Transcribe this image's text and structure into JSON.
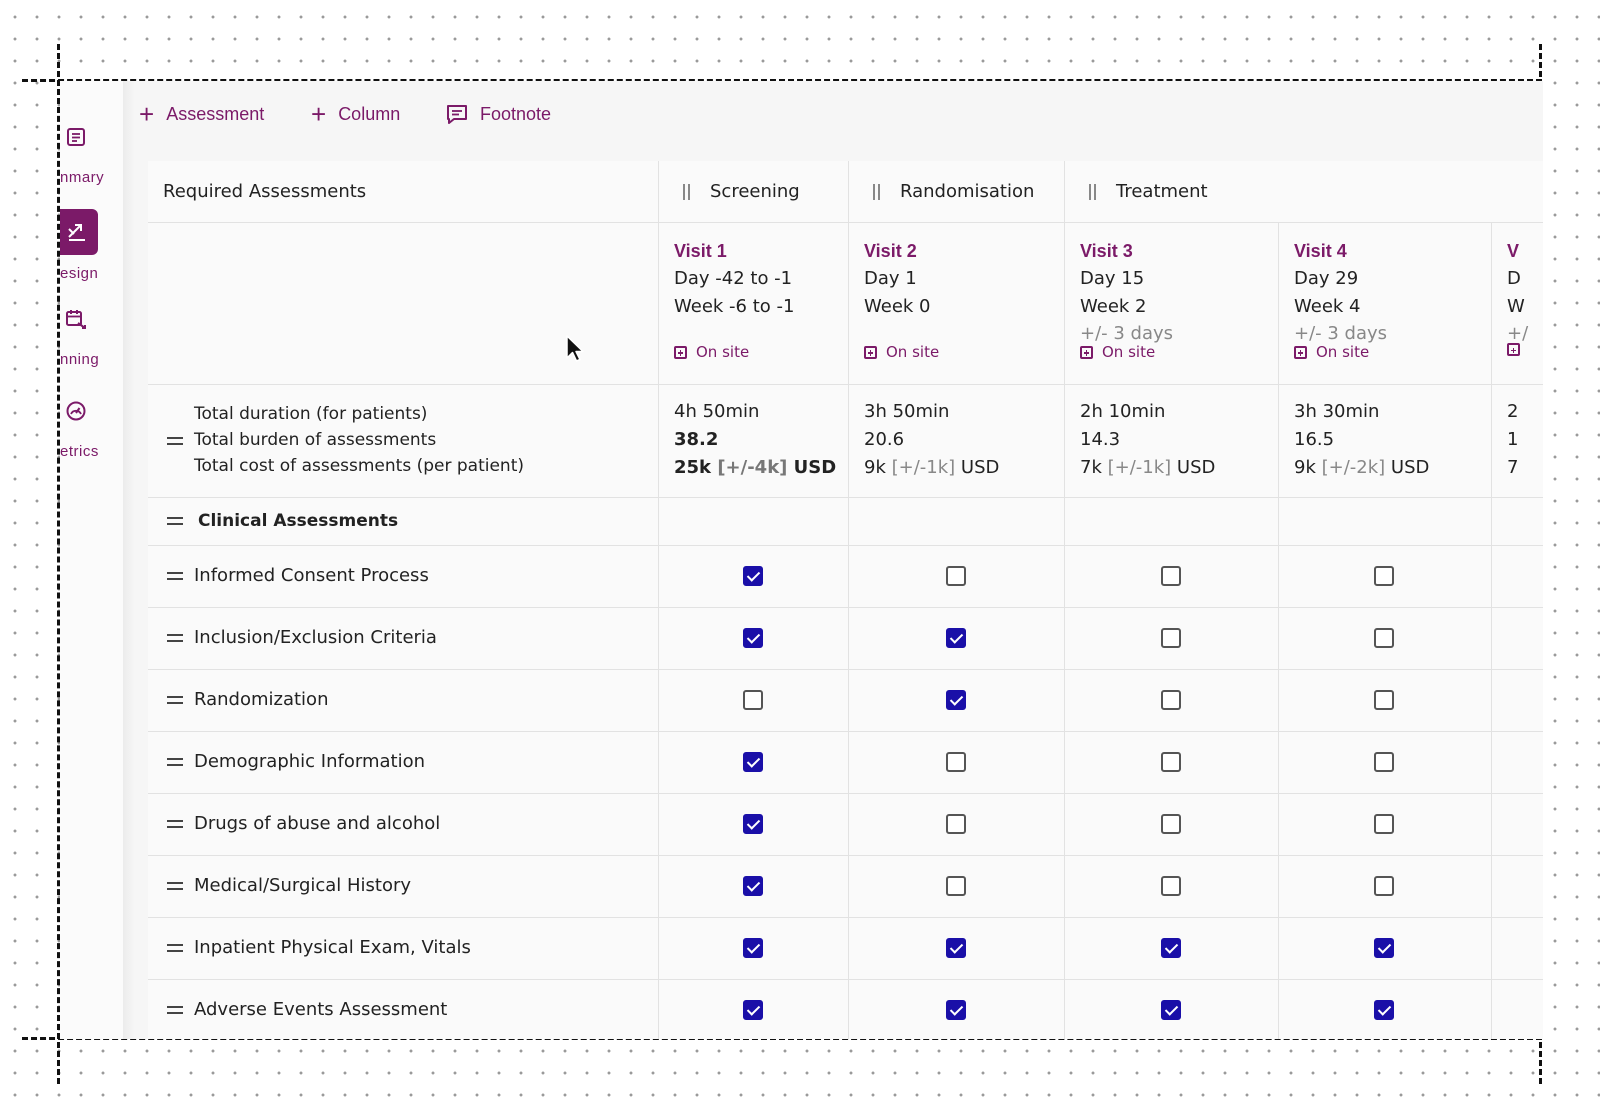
{
  "sidebar": {
    "items": [
      {
        "label": "nmary",
        "icon": "document-icon",
        "active": false
      },
      {
        "label": "esign",
        "icon": "design-shuffle-icon",
        "active": true
      },
      {
        "label": "nning",
        "icon": "calendar-icon",
        "active": false
      },
      {
        "label": "etrics",
        "icon": "gauge-icon",
        "active": false
      }
    ]
  },
  "toolbar": {
    "add_assessment": "Assessment",
    "add_column": "Column",
    "add_footnote": "Footnote"
  },
  "table": {
    "header_label": "Required Assessments",
    "phases": [
      "Screening",
      "Randomisation",
      "Treatment"
    ],
    "visits": [
      {
        "title": "Visit 1",
        "day": "Day -42 to -1",
        "week": "Week -6 to -1",
        "window": "",
        "site": "On site"
      },
      {
        "title": "Visit 2",
        "day": "Day 1",
        "week": "Week 0",
        "window": "",
        "site": "On site"
      },
      {
        "title": "Visit 3",
        "day": "Day 15",
        "week": "Week 2",
        "window": "+/- 3 days",
        "site": "On site"
      },
      {
        "title": "Visit 4",
        "day": "Day 29",
        "week": "Week 4",
        "window": "+/- 3 days",
        "site": "On site"
      },
      {
        "title": "V",
        "day": "D",
        "week": "W",
        "window": "+/",
        "site": ""
      }
    ],
    "summary_labels": {
      "duration": "Total duration (for patients)",
      "burden": "Total burden of assessments",
      "cost": "Total cost of assessments (per patient)"
    },
    "summary_values": [
      {
        "duration": "4h 50min",
        "burden": "38.2",
        "cost": "25k",
        "range": "[+/-4k]",
        "currency": "USD"
      },
      {
        "duration": "3h 50min",
        "burden": "20.6",
        "cost": "9k",
        "range": "[+/-1k]",
        "currency": "USD"
      },
      {
        "duration": "2h 10min",
        "burden": "14.3",
        "cost": "7k",
        "range": "[+/-1k]",
        "currency": "USD"
      },
      {
        "duration": "3h 30min",
        "burden": "16.5",
        "cost": "9k",
        "range": "[+/-2k]",
        "currency": "USD"
      },
      {
        "duration": "2",
        "burden": "1",
        "cost": "7",
        "range": "",
        "currency": ""
      }
    ],
    "section_title": "Clinical Assessments",
    "rows": [
      {
        "label": "Informed Consent Process",
        "checks": [
          true,
          false,
          false,
          false
        ]
      },
      {
        "label": "Inclusion/Exclusion Criteria",
        "checks": [
          true,
          true,
          false,
          false
        ]
      },
      {
        "label": "Randomization",
        "checks": [
          false,
          true,
          false,
          false
        ]
      },
      {
        "label": "Demographic Information",
        "checks": [
          true,
          false,
          false,
          false
        ]
      },
      {
        "label": "Drugs of abuse and alcohol",
        "checks": [
          true,
          false,
          false,
          false
        ]
      },
      {
        "label": "Medical/Surgical History",
        "checks": [
          true,
          false,
          false,
          false
        ]
      },
      {
        "label": "Inpatient Physical Exam, Vitals",
        "checks": [
          true,
          true,
          true,
          true
        ]
      },
      {
        "label": "Adverse Events Assessment",
        "checks": [
          true,
          true,
          true,
          true
        ]
      }
    ]
  },
  "colors": {
    "accent": "#7b1a68",
    "checkbox": "#1a0fa8"
  }
}
